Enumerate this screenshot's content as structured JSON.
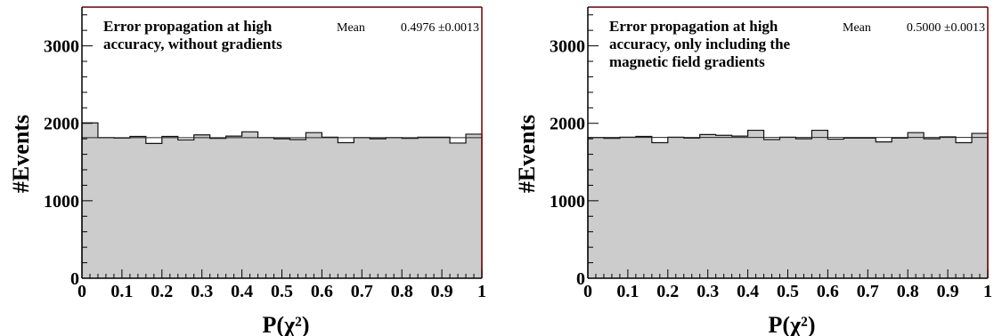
{
  "chart_data": [
    {
      "type": "bar",
      "title_lines": [
        "Error propagation at high",
        "accuracy, without gradients"
      ],
      "stat_label": "Mean",
      "stat_value": "0.4976 ±0.0013",
      "xlabel": "P(χ²)",
      "ylabel": "#Events",
      "xlim": [
        0,
        1
      ],
      "ylim": [
        0,
        3500
      ],
      "xticks": [
        "0",
        "0.1",
        "0.2",
        "0.3",
        "0.4",
        "0.5",
        "0.6",
        "0.7",
        "0.8",
        "0.9",
        "1"
      ],
      "yticks": [
        "0",
        "1000",
        "2000",
        "3000"
      ],
      "bin_width": 0.04,
      "fit_level": 1815,
      "fill_color": "#cccccc",
      "frame_color": "#6b0000",
      "values": [
        2005,
        1815,
        1810,
        1830,
        1740,
        1830,
        1785,
        1850,
        1805,
        1835,
        1890,
        1815,
        1800,
        1790,
        1880,
        1820,
        1750,
        1815,
        1800,
        1815,
        1805,
        1820,
        1820,
        1745,
        1860
      ]
    },
    {
      "type": "bar",
      "title_lines": [
        "Error propagation at high",
        "accuracy, only including the",
        "magnetic field gradients"
      ],
      "stat_label": "Mean",
      "stat_value": "0.5000 ±0.0013",
      "xlabel": "P(χ²)",
      "ylabel": "#Events",
      "xlim": [
        0,
        1
      ],
      "ylim": [
        0,
        3500
      ],
      "xticks": [
        "0",
        "0.1",
        "0.2",
        "0.3",
        "0.4",
        "0.5",
        "0.6",
        "0.7",
        "0.8",
        "0.9",
        "1"
      ],
      "yticks": [
        "0",
        "1000",
        "2000",
        "3000"
      ],
      "bin_width": 0.04,
      "fit_level": 1818,
      "fill_color": "#cccccc",
      "frame_color": "#6b0000",
      "values": [
        1815,
        1805,
        1820,
        1830,
        1750,
        1820,
        1810,
        1855,
        1845,
        1835,
        1910,
        1790,
        1820,
        1800,
        1910,
        1795,
        1810,
        1810,
        1760,
        1810,
        1880,
        1800,
        1825,
        1750,
        1870
      ]
    }
  ]
}
